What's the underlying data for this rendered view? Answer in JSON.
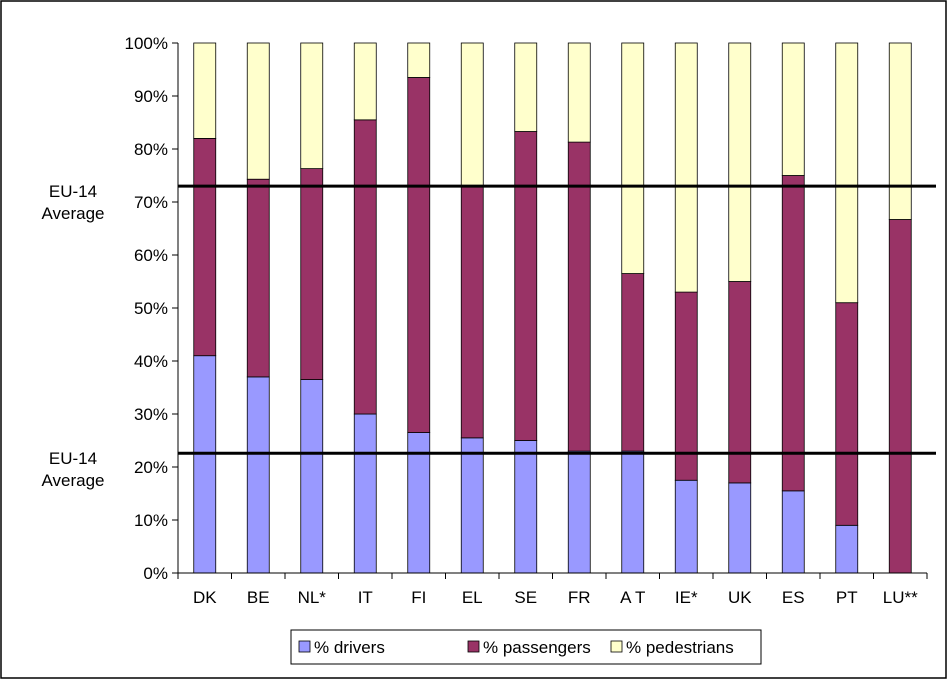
{
  "chart_data": {
    "type": "bar",
    "stacked": true,
    "percent": true,
    "categories": [
      "DK",
      "BE",
      "NL*",
      "IT",
      "FI",
      "EL",
      "SE",
      "FR",
      "A T",
      "IE*",
      "UK",
      "ES",
      "PT",
      "LU**"
    ],
    "series": [
      {
        "name": "% drivers",
        "color": "#9999FF",
        "values": [
          41,
          37,
          36.5,
          30,
          26.5,
          25.5,
          25,
          23,
          23,
          17.5,
          17,
          15.5,
          9,
          0
        ]
      },
      {
        "name": "% passengers",
        "color": "#993366",
        "values": [
          41,
          37.3,
          39.8,
          55.5,
          67,
          47.5,
          58.3,
          58.3,
          33.5,
          35.5,
          38,
          59.5,
          42,
          66.7
        ]
      },
      {
        "name": "% pedestrians",
        "color": "#FFFFCC",
        "values": [
          18,
          25.7,
          23.7,
          14.5,
          6.5,
          27,
          16.7,
          18.7,
          43.5,
          47,
          45,
          25,
          49,
          33.3
        ]
      }
    ],
    "yticks": [
      "0%",
      "10%",
      "20%",
      "30%",
      "40%",
      "50%",
      "60%",
      "70%",
      "80%",
      "90%",
      "100%"
    ],
    "ylim": [
      0,
      100
    ],
    "reference_lines": [
      {
        "label_line1": "EU-14",
        "label_line2": "Average",
        "value": 73
      },
      {
        "label_line1": "EU-14",
        "label_line2": "Average",
        "value": 22.6
      }
    ],
    "legend": {
      "position": "bottom"
    },
    "grid": false
  }
}
